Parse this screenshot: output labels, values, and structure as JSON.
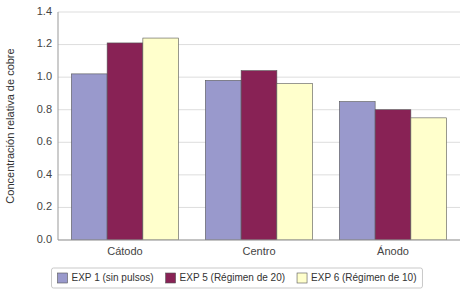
{
  "chart_data": {
    "type": "bar",
    "categories": [
      "Cátodo",
      "Centro",
      "Ánodo"
    ],
    "series": [
      {
        "name": "EXP 1 (sin pulsos)",
        "values": [
          1.02,
          0.98,
          0.85
        ],
        "color": "#9999cc"
      },
      {
        "name": "EXP 5 (Régimen de 20)",
        "values": [
          1.21,
          1.04,
          0.8
        ],
        "color": "#882255"
      },
      {
        "name": "EXP 6 (Régimen de 10)",
        "values": [
          1.24,
          0.96,
          0.75
        ],
        "color": "#ffffcc"
      }
    ],
    "ylabel": "Concentración relativa de cobre",
    "ylim": [
      0,
      1.4
    ],
    "yticks": [
      {
        "value": 0.0,
        "label": "0.0"
      },
      0.2,
      0.4,
      0.6,
      0.8,
      {
        "value": 1.0,
        "label": "1.0"
      },
      1.2,
      1.4
    ],
    "grid": true,
    "legend": "bottom"
  }
}
